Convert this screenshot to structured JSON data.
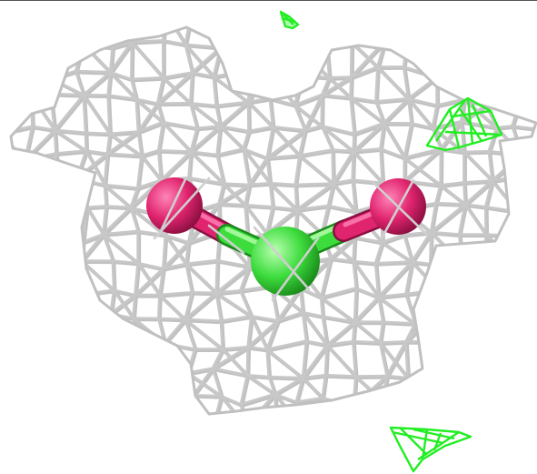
{
  "viewer": {
    "background_color": "#ffffff",
    "border_color": "#555555"
  },
  "density_mesh": {
    "color": "#c8c8c8",
    "shadow_color": "#8f8f8f",
    "style": "wireframe"
  },
  "ligand": {
    "oxygen_color": "#e0246e",
    "oxygen_highlight": "#ff84b8",
    "chlorine_color": "#3ddc3d",
    "chlorine_highlight": "#b9ffb0",
    "bond_color_pink": "#e0246e",
    "bond_color_green": "#3ddc3d"
  },
  "difference_density": {
    "color": "#22ee22",
    "style": "wireframe"
  }
}
